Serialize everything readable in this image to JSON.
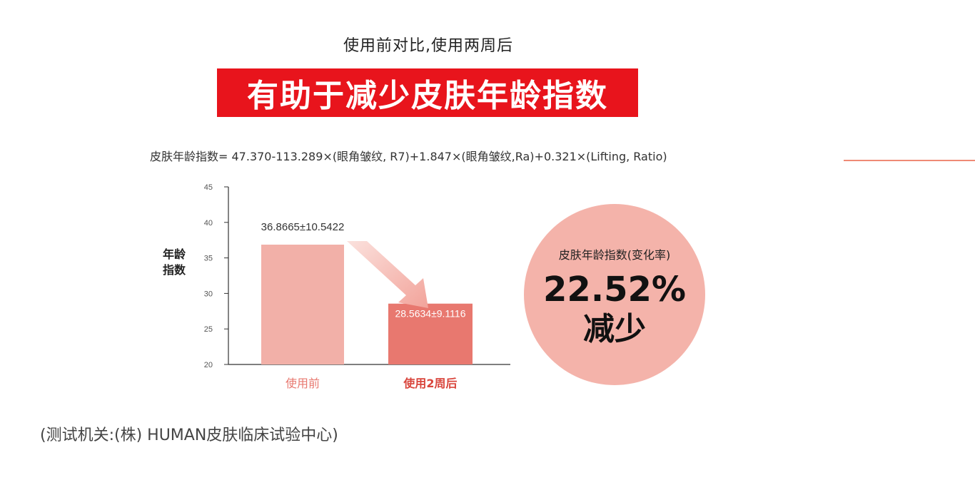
{
  "header": {
    "subtitle": "使用前对比,使用两周后",
    "title": "有助于减少皮肤年龄指数",
    "formula": "皮肤年龄指数= 47.370-113.289×(眼角皱纹, R7)+1.847×(眼角皱纹,Ra)+0.321×(Lifting, Ratio)"
  },
  "chart_data": {
    "type": "bar",
    "title": "",
    "ylabel": "年龄\n指数",
    "ylabel_lines": [
      "年龄",
      "指数"
    ],
    "xlabel": "",
    "categories": [
      "使用前",
      "使用2周后"
    ],
    "values": [
      36.8665,
      28.5634
    ],
    "data_labels": [
      "36.8665±10.5422",
      "28.5634±9.1116"
    ],
    "ylim": [
      20,
      45
    ],
    "yticks": [
      20,
      25,
      30,
      35,
      40,
      45
    ],
    "ytick_labels": [
      "20",
      "25",
      "30",
      "35",
      "40",
      "45"
    ],
    "grid": false,
    "legend": "none",
    "bar_colors": [
      "#f2b0a8",
      "#e8786f"
    ],
    "label_colors": [
      "#e8786f",
      "#d9453c"
    ],
    "arrow_color": "#f2a39a"
  },
  "summary": {
    "label": "皮肤年龄指数(变化率)",
    "value": "22.52%",
    "direction": "减少",
    "circle_color": "#f4b3aa"
  },
  "footer": {
    "note": "(测试机关:(株) HUMAN皮肤临床试验中心)"
  },
  "colors": {
    "accent_red": "#e8141c",
    "deco_line": "#ef8a75"
  }
}
